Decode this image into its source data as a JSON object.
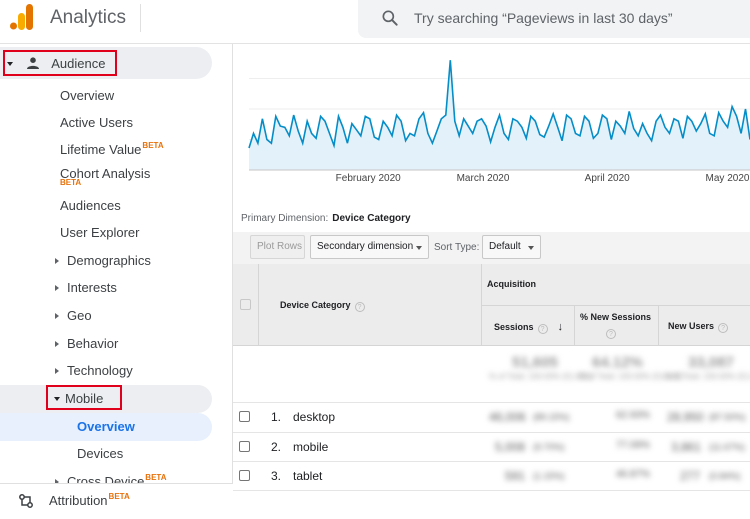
{
  "app": {
    "title": "Analytics",
    "brand_colors": {
      "bar_dark": "#e37400",
      "bar_light": "#f9ab00"
    }
  },
  "search": {
    "placeholder": "Try searching “Pageviews in last 30 days”",
    "icon": "search-icon"
  },
  "sidebar": {
    "audience": {
      "label": "Audience",
      "icon": "person-icon"
    },
    "items": [
      {
        "label": "Overview"
      },
      {
        "label": "Active Users"
      },
      {
        "label": "Lifetime Value",
        "badge": "BETA"
      },
      {
        "label": "Cohort Analysis",
        "badge": "BETA"
      },
      {
        "label": "Audiences"
      },
      {
        "label": "User Explorer"
      },
      {
        "label": "Demographics"
      },
      {
        "label": "Interests"
      },
      {
        "label": "Geo"
      },
      {
        "label": "Behavior"
      },
      {
        "label": "Technology"
      }
    ],
    "mobile": {
      "label": "Mobile",
      "items": [
        {
          "label": "Overview"
        },
        {
          "label": "Devices"
        }
      ]
    },
    "cross_device": {
      "label": "Cross Device",
      "badge": "BETA"
    },
    "footer": {
      "label": "Attribution",
      "badge": "BETA",
      "icon": "attribution-icon"
    }
  },
  "chart_data": {
    "type": "area",
    "x_tick_labels": [
      "February 2020",
      "March 2020",
      "April 2020",
      "May 2020"
    ],
    "values": [
      18,
      30,
      22,
      42,
      25,
      22,
      44,
      36,
      35,
      28,
      45,
      32,
      22,
      40,
      30,
      26,
      44,
      40,
      30,
      20,
      44,
      35,
      22,
      38,
      33,
      28,
      44,
      42,
      27,
      25,
      40,
      35,
      28,
      45,
      40,
      24,
      30,
      28,
      42,
      47,
      30,
      22,
      32,
      42,
      45,
      90,
      40,
      28,
      42,
      36,
      30,
      40,
      42,
      36,
      23,
      35,
      45,
      30,
      25,
      42,
      40,
      35,
      26,
      44,
      40,
      29,
      27,
      36,
      46,
      35,
      24,
      45,
      42,
      30,
      28,
      44,
      40,
      26,
      30,
      45,
      42,
      25,
      40,
      36,
      30,
      48,
      34,
      28,
      38,
      30,
      24,
      40,
      45,
      35,
      30,
      42,
      40,
      26,
      44,
      40,
      32,
      38,
      46,
      30,
      28,
      47,
      40,
      35,
      52,
      44,
      30,
      50,
      25
    ],
    "ylim": [
      0,
      100
    ],
    "color": "#058dc7"
  },
  "report": {
    "primary_dimension_label": "Primary Dimension:",
    "primary_dimension_value": "Device Category",
    "toolbar": {
      "plot_rows": "Plot Rows",
      "secondary_dimension": "Secondary dimension",
      "sort_type_label": "Sort Type:",
      "sort_type_value": "Default"
    },
    "table": {
      "group_header": "Acquisition",
      "columns": {
        "dimension": "Device Category",
        "sessions": "Sessions",
        "new_sessions": "% New Sessions",
        "new_users": "New Users"
      },
      "totals": {
        "sessions": "51,605",
        "new_sessions": "64.12%",
        "new_users": "33,087",
        "sub": "% of Total: 100.00% (51,605)"
      },
      "rows": [
        {
          "num": "1.",
          "name": "desktop",
          "sessions": "46,006",
          "sessions_pct": "(89.15%)",
          "new_sessions": "62.93%",
          "new_users": "28,950",
          "new_users_pct": "(87.50%)"
        },
        {
          "num": "2.",
          "name": "mobile",
          "sessions": "5,008",
          "sessions_pct": "(9.70%)",
          "new_sessions": "77.09%",
          "new_users": "3,861",
          "new_users_pct": "(11.67%)"
        },
        {
          "num": "3.",
          "name": "tablet",
          "sessions": "591",
          "sessions_pct": "(1.15%)",
          "new_sessions": "46.87%",
          "new_users": "277",
          "new_users_pct": "(0.84%)"
        }
      ]
    }
  }
}
